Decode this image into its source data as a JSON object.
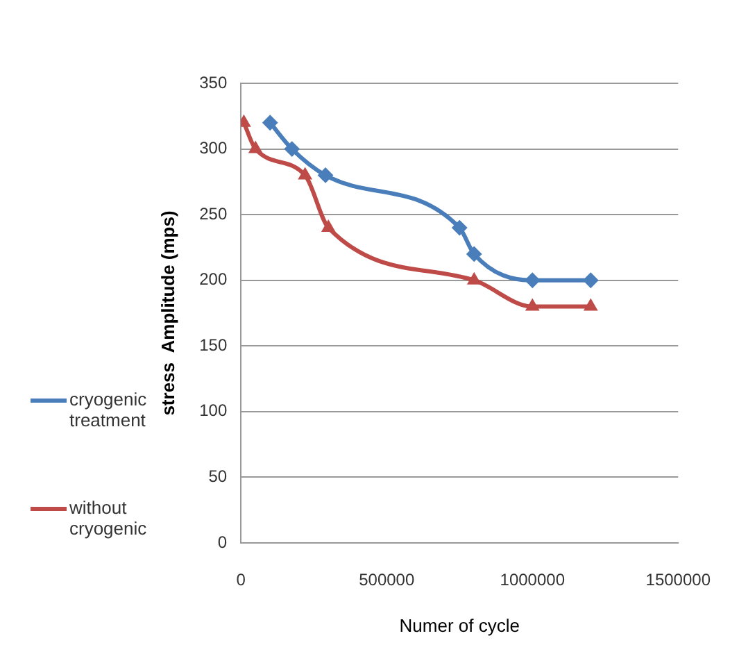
{
  "chart_data": {
    "type": "line",
    "xlabel": "Numer of cycle",
    "ylabel": "stress  Amplitude (mps)",
    "xlim": [
      0,
      1500000
    ],
    "xticks": [
      0,
      500000,
      1000000,
      1500000
    ],
    "ylim": [
      0,
      350
    ],
    "yticks": [
      0,
      50,
      100,
      150,
      200,
      250,
      300,
      350
    ],
    "grid": "y",
    "legend": "left",
    "series": [
      {
        "name": "cryogenic treatment",
        "color": "#4a7ebb",
        "marker": "diamond",
        "x": [
          100000,
          175000,
          290000,
          750000,
          800000,
          1000000,
          1200000
        ],
        "values": [
          320,
          300,
          280,
          240,
          220,
          200,
          200
        ]
      },
      {
        "name": "without cryogenic",
        "color": "#be4b48",
        "marker": "triangle",
        "x": [
          10000,
          50000,
          220000,
          300000,
          800000,
          1000000,
          1200000
        ],
        "values": [
          320,
          300,
          280,
          240,
          200,
          180,
          180
        ]
      }
    ]
  }
}
